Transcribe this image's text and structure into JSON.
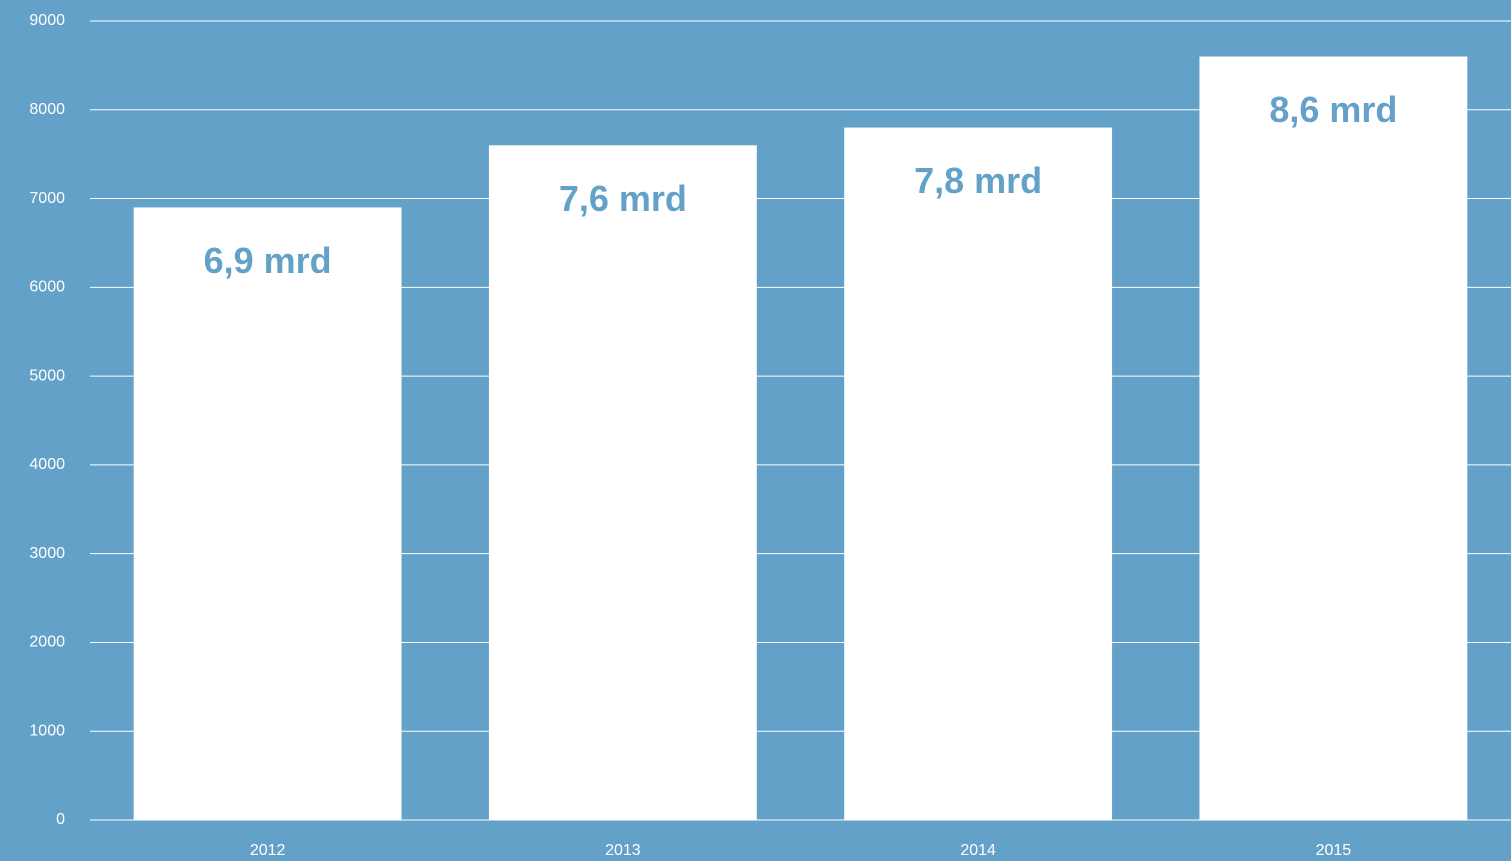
{
  "chart_data": {
    "type": "bar",
    "categories": [
      "2012",
      "2013",
      "2014",
      "2015"
    ],
    "values": [
      6900,
      7600,
      7800,
      8600
    ],
    "value_labels": [
      "6,9 mrd",
      "7,6 mrd",
      "7,8 mrd",
      "8,6 mrd"
    ],
    "color": "#ffffff",
    "ylim": [
      0,
      9000
    ],
    "yticks": [
      0,
      1000,
      2000,
      3000,
      4000,
      5000,
      6000,
      7000,
      8000,
      9000
    ],
    "grid": true
  }
}
